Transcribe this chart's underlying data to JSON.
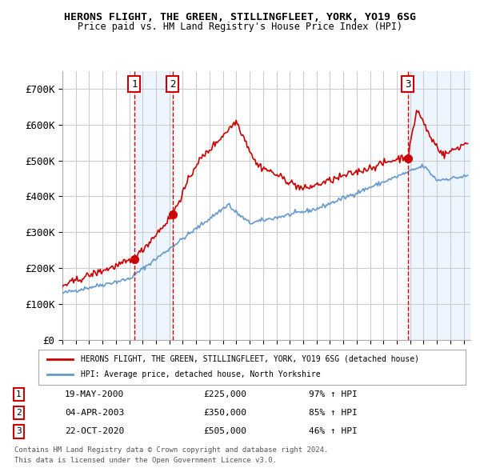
{
  "title1": "HERONS FLIGHT, THE GREEN, STILLINGFLEET, YORK, YO19 6SG",
  "title2": "Price paid vs. HM Land Registry's House Price Index (HPI)",
  "ylabel": "",
  "bg_color": "#ffffff",
  "plot_bg": "#ffffff",
  "grid_color": "#cccccc",
  "sale_color": "#cc0000",
  "hpi_color": "#6699cc",
  "sale_dot_color": "#cc0000",
  "vline_color": "#cc0000",
  "vshade_color": "#ddeeff",
  "transactions": [
    {
      "label": "1",
      "date_num": 2000.38,
      "price": 225000,
      "pct": "97%",
      "date_str": "19-MAY-2000"
    },
    {
      "label": "2",
      "date_num": 2003.25,
      "price": 350000,
      "pct": "85%",
      "date_str": "04-APR-2003"
    },
    {
      "label": "3",
      "date_num": 2020.81,
      "price": 505000,
      "pct": "46%",
      "date_str": "22-OCT-2020"
    }
  ],
  "xmin": 1995.0,
  "xmax": 2025.5,
  "ymin": 0,
  "ymax": 750000,
  "yticks": [
    0,
    100000,
    200000,
    300000,
    400000,
    500000,
    600000,
    700000
  ],
  "ytick_labels": [
    "£0",
    "£100K",
    "£200K",
    "£300K",
    "£400K",
    "£500K",
    "£600K",
    "£700K"
  ],
  "legend_line1": "HERONS FLIGHT, THE GREEN, STILLINGFLEET, YORK, YO19 6SG (detached house)",
  "legend_line2": "HPI: Average price, detached house, North Yorkshire",
  "footer1": "Contains HM Land Registry data © Crown copyright and database right 2024.",
  "footer2": "This data is licensed under the Open Government Licence v3.0."
}
